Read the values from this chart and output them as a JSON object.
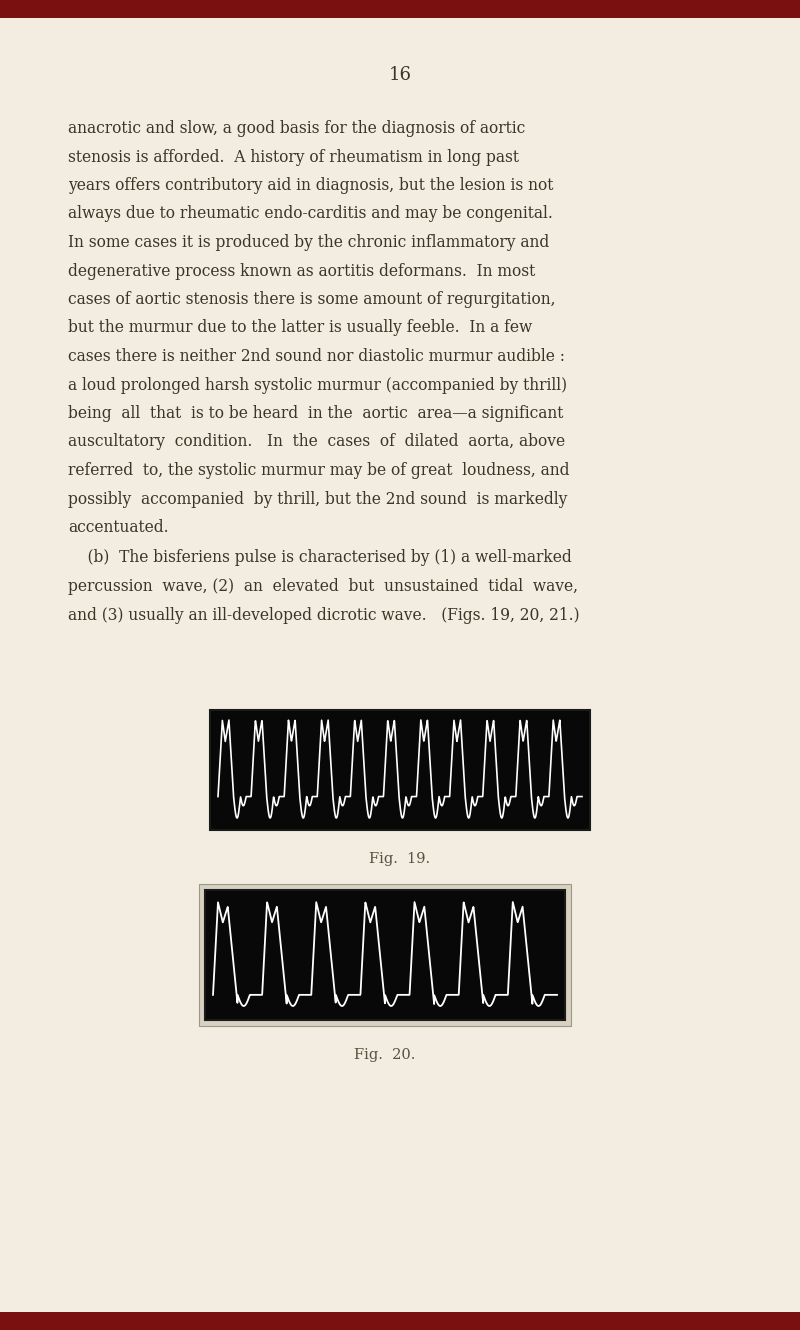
{
  "bg_color": "#f2ede0",
  "page_number": "16",
  "text_color": "#3a3525",
  "fig_caption_color": "#5a5040",
  "text_lines": [
    "anacrotic and slow, a good basis for the diagnosis of aortic",
    "stenosis is afforded.  A history of rheumatism in long past",
    "years offers contributory aid in diagnosis, but the lesion is not",
    "always due to rheumatic endo-carditis and may be congenital.",
    "In some cases it is produced by the chronic inflammatory and",
    "degenerative process known as aortitis deformans.  In most",
    "cases of aortic stenosis there is some amount of regurgitation,",
    "but the murmur due to the latter is usually feeble.  In a few",
    "cases there is neither 2nd sound nor diastolic murmur audible :",
    "a loud prolonged harsh systolic murmur (accompanied by thrill)",
    "being  all  that  is to be heard  in the  aortic  area—a significant",
    "auscultatory  condition.   In  the  cases  of  dilated  aorta, above",
    "referred  to, the systolic murmur may be of great  loudness, and",
    "possibly  accompanied  by thrill, but the 2nd sound  is markedly",
    "accentuated."
  ],
  "paragraph2_lines": [
    "    (b)  The bisferiens pulse is characterised by (1) a well-marked",
    "percussion  wave, (2)  an  elevated  but  unsustained  tidal  wave,",
    "and (3) usually an ill-developed dicrotic wave.   (Figs. 19, 20, 21.)"
  ],
  "fig19_caption": "Fig.  19.",
  "fig20_caption": "Fig.  20.",
  "top_bar_color": "#7a1010",
  "bottom_bar_color": "#7a1010"
}
